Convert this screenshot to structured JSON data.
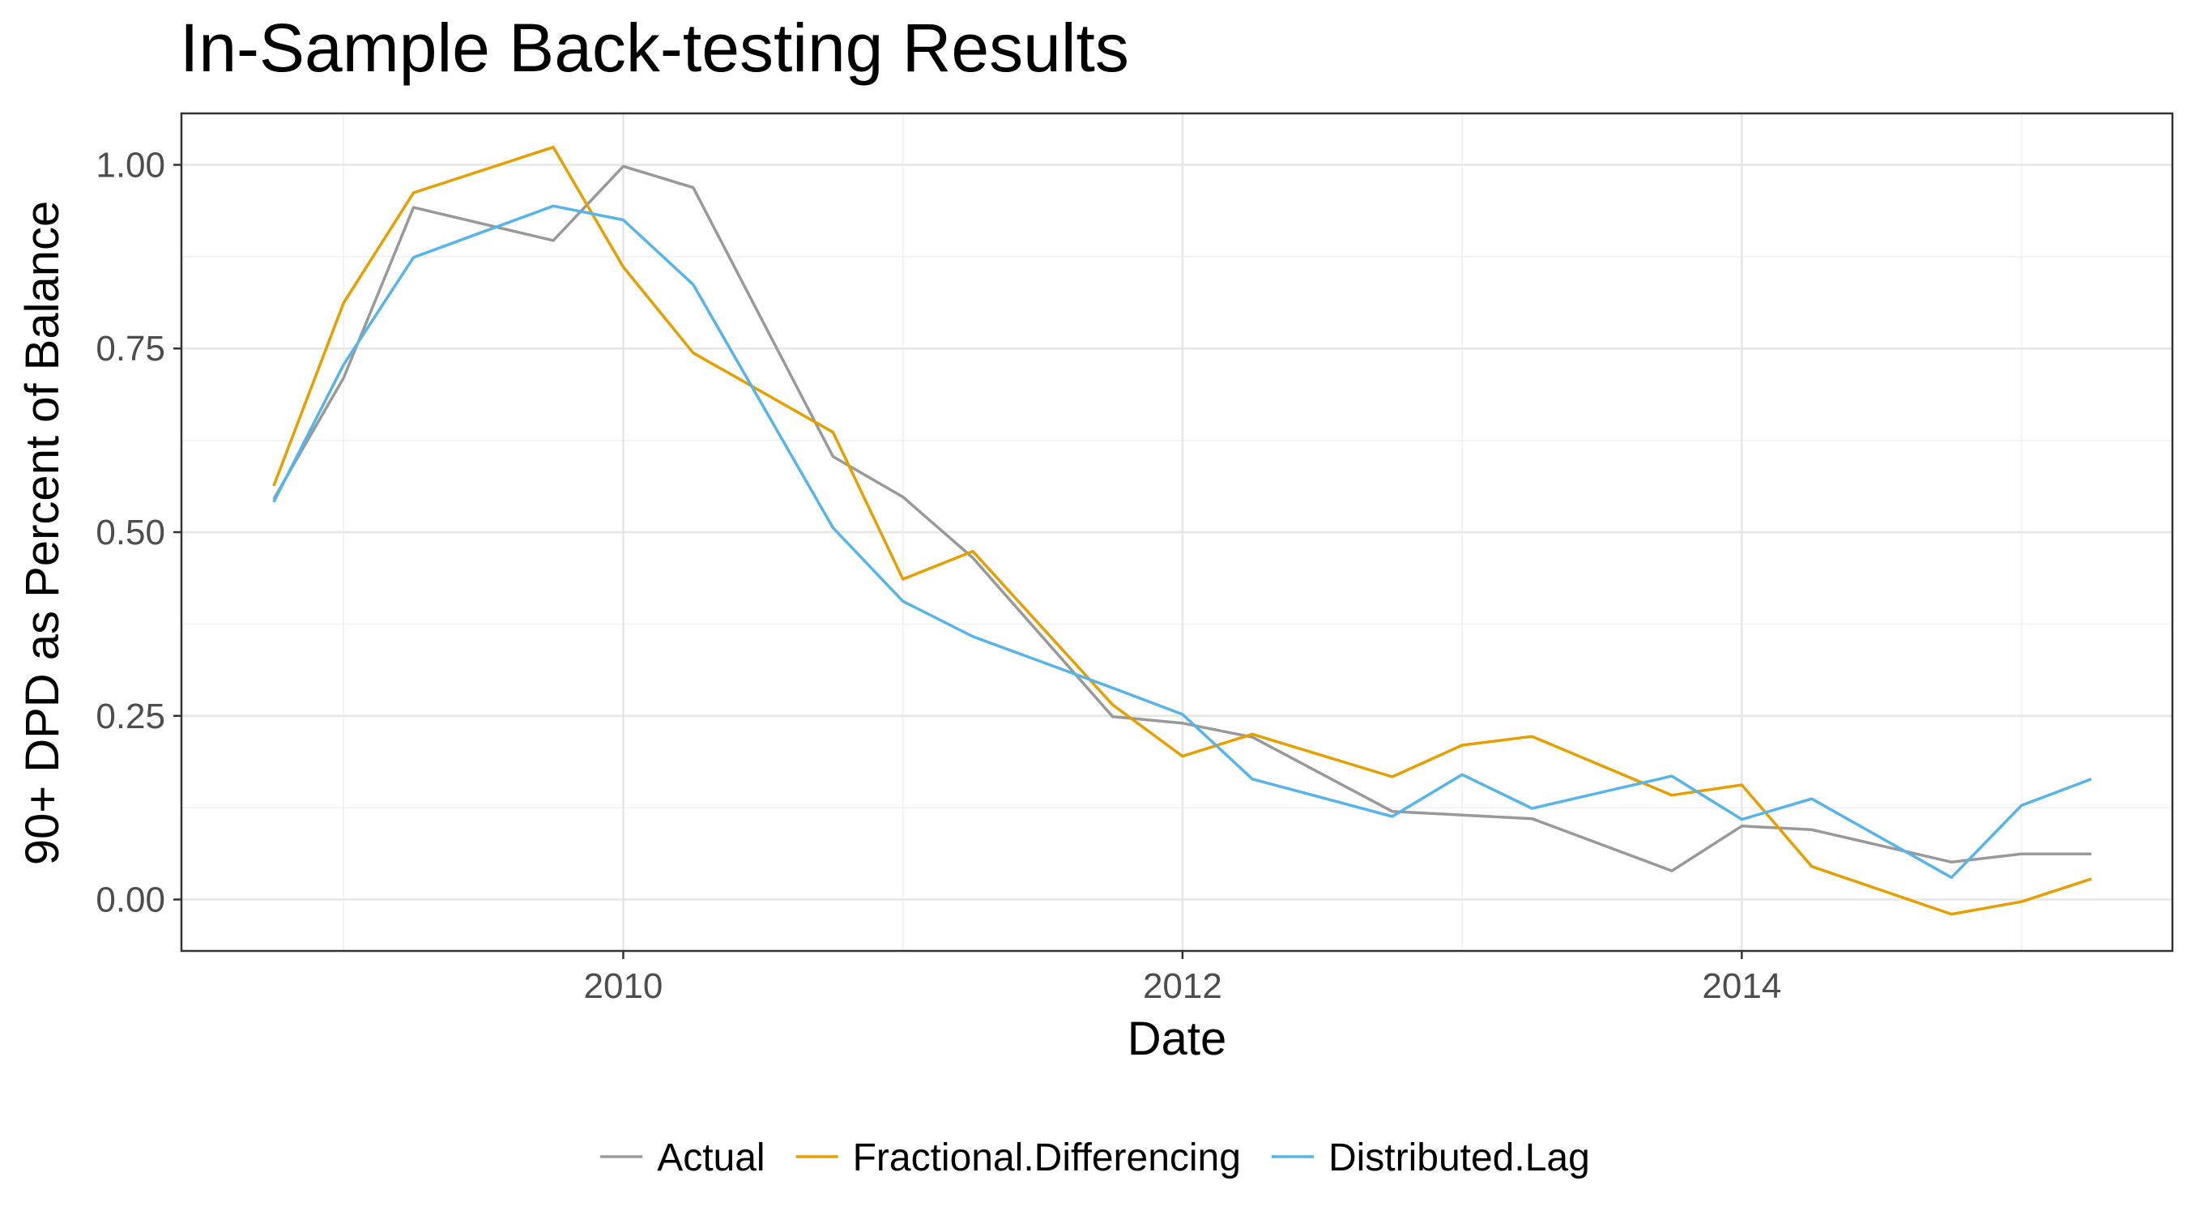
{
  "chart_data": {
    "type": "line",
    "title": "In-Sample Back-testing Results",
    "xlabel": "Date",
    "ylabel": "90+ DPD as Percent of Balance",
    "xlim": [
      2008.42,
      2015.54
    ],
    "ylim": [
      -0.07,
      1.07
    ],
    "x_ticks": [
      2010,
      2012,
      2014
    ],
    "x_tick_labels": [
      "2010",
      "2012",
      "2014"
    ],
    "y_ticks": [
      0,
      0.25,
      0.5,
      0.75,
      1.0
    ],
    "y_tick_labels": [
      "0.00",
      "0.25",
      "0.50",
      "0.75",
      "1.00"
    ],
    "grid": true,
    "legend_position": "bottom",
    "x": [
      2008.75,
      2009.0,
      2009.25,
      2009.75,
      2010.0,
      2010.25,
      2010.75,
      2011.0,
      2011.25,
      2011.75,
      2012.0,
      2012.25,
      2012.75,
      2013.0,
      2013.25,
      2013.75,
      2014.0,
      2014.25,
      2014.75,
      2015.0,
      2015.25
    ],
    "series": [
      {
        "name": "Actual",
        "color": "#999999",
        "values": [
          0.545,
          0.71,
          0.942,
          0.897,
          0.998,
          0.969,
          0.603,
          0.548,
          0.465,
          0.249,
          0.24,
          0.221,
          0.12,
          0.115,
          0.11,
          0.039,
          0.1,
          0.095,
          0.051,
          0.062,
          0.062
        ]
      },
      {
        "name": "Fractional.Differencing",
        "color": "#E69F00",
        "values": [
          0.563,
          0.812,
          0.962,
          1.024,
          0.861,
          0.744,
          0.636,
          0.436,
          0.474,
          0.265,
          0.195,
          0.225,
          0.167,
          0.21,
          0.222,
          0.142,
          0.156,
          0.045,
          -0.02,
          -0.003,
          0.028
        ]
      },
      {
        "name": "Distributed.Lag",
        "color": "#56B4E9",
        "values": [
          0.541,
          0.728,
          0.874,
          0.944,
          0.925,
          0.837,
          0.506,
          0.406,
          0.358,
          0.288,
          0.252,
          0.164,
          0.113,
          0.17,
          0.124,
          0.168,
          0.109,
          0.137,
          0.03,
          0.128,
          0.164
        ]
      }
    ]
  }
}
